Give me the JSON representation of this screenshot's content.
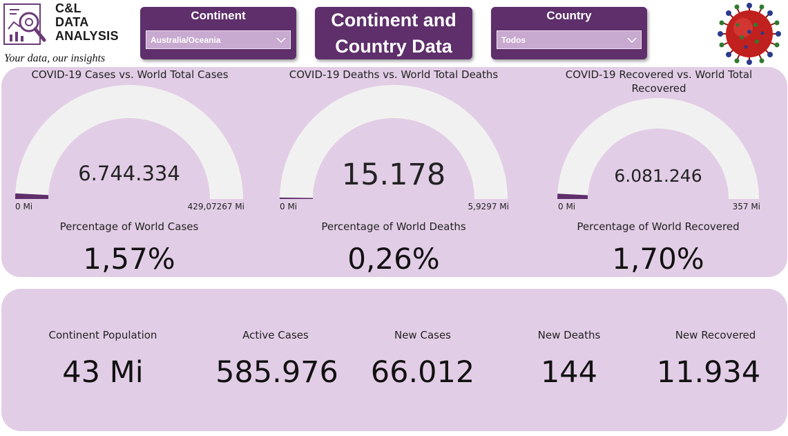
{
  "logo": {
    "title_lines": [
      "C&L",
      "DATA",
      "ANALYSIS"
    ],
    "tagline": "Your data, our insights"
  },
  "slicers": {
    "continent": {
      "title": "Continent",
      "value": "Australia/Oceania"
    },
    "country": {
      "title": "Country",
      "value": "Todos"
    }
  },
  "page_title": {
    "line1": "Continent and",
    "line2": "Country Data"
  },
  "gauges": [
    {
      "title_line1": "COVID-19 Cases vs. World Total Cases",
      "title_line2": "",
      "value": "6.744.334",
      "min": "0 Mi",
      "max": "429,07267 Mi",
      "fill_fraction": 0.0157,
      "pct_label": "Percentage of World Cases",
      "pct_value": "1,57%"
    },
    {
      "title_line1": "COVID-19 Deaths vs. World Total Deaths",
      "title_line2": "",
      "value": "15.178",
      "min": "0 Mi",
      "max": "5,9297 Mi",
      "fill_fraction": 0.0026,
      "pct_label": "Percentage of World Deaths",
      "pct_value": "0,26%"
    },
    {
      "title_line1": "COVID-19 Recovered vs. World Total",
      "title_line2": "Recovered",
      "value": "6.081.246",
      "min": "0 Mi",
      "max": "357 Mi",
      "fill_fraction": 0.017,
      "pct_label": "Percentage of World Recovered",
      "pct_value": "1,70%"
    }
  ],
  "kpis": [
    {
      "label": "Continent Population",
      "value": "43 Mi"
    },
    {
      "label": "Active Cases",
      "value": "585.976"
    },
    {
      "label": "New Cases",
      "value": "66.012"
    },
    {
      "label": "New Deaths",
      "value": "144"
    },
    {
      "label": "New Recovered",
      "value": "11.934"
    }
  ],
  "colors": {
    "brand_purple": "#5e2f6b",
    "panel_bg": "#e2cde6",
    "gauge_track": "#f2f1f1",
    "gauge_fill": "#5e2f6b"
  }
}
